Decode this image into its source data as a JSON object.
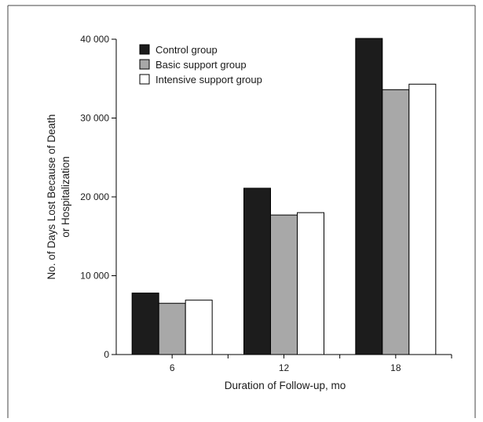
{
  "chart_data": {
    "type": "bar",
    "categories": [
      "6",
      "12",
      "18"
    ],
    "series": [
      {
        "name": "Control group",
        "values": [
          7800,
          21100,
          40100
        ],
        "color": "#1c1c1c"
      },
      {
        "name": "Basic support group",
        "values": [
          6500,
          17700,
          33600
        ],
        "color": "#a8a8a8"
      },
      {
        "name": "Intensive support group",
        "values": [
          6900,
          18000,
          34300
        ],
        "color": "#ffffff"
      }
    ],
    "title": "",
    "xlabel": "Duration of Follow-up, mo",
    "ylabel_lines": [
      "No. of Days Lost Because of Death",
      "or Hospitalization"
    ],
    "ylim": [
      0,
      40000
    ],
    "yticks": [
      0,
      10000,
      20000,
      30000,
      40000
    ],
    "ytick_labels": [
      "0",
      "10 000",
      "20 000",
      "30 000",
      "40 000"
    ],
    "grid": false,
    "legend_position": "top-left"
  }
}
